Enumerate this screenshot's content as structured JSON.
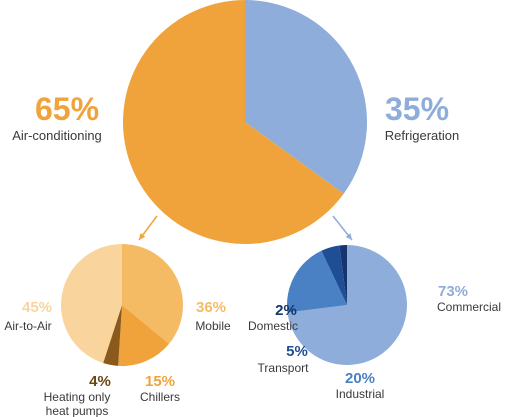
{
  "chart_data": [
    {
      "type": "pie",
      "categories": [
        "Air-conditioning",
        "Refrigeration"
      ],
      "values": [
        65,
        35
      ],
      "value_labels": [
        "65%",
        "35%"
      ],
      "colors": [
        "#f0a33a",
        "#8eadda"
      ],
      "title": ""
    },
    {
      "type": "pie",
      "categories": [
        "Mobile",
        "Chillers",
        "Heating only\nheat pumps",
        "Air-to-Air"
      ],
      "values": [
        36,
        15,
        4,
        45
      ],
      "value_labels": [
        "36%",
        "15%",
        "4%",
        "45%"
      ],
      "colors": [
        "#f5bb64",
        "#f0a33a",
        "#8a5a1c",
        "#f9d49d"
      ],
      "title": ""
    },
    {
      "type": "pie",
      "categories": [
        "Commercial",
        "Industrial",
        "Transport",
        "Domestic"
      ],
      "values": [
        73,
        20,
        5,
        2
      ],
      "value_labels": [
        "73%",
        "20%",
        "5%",
        "2%"
      ],
      "colors": [
        "#8eadda",
        "#4a80c4",
        "#1f4e96",
        "#14356d"
      ],
      "title": ""
    }
  ],
  "connector_colors": [
    "#f0a33a",
    "#8eadda"
  ]
}
